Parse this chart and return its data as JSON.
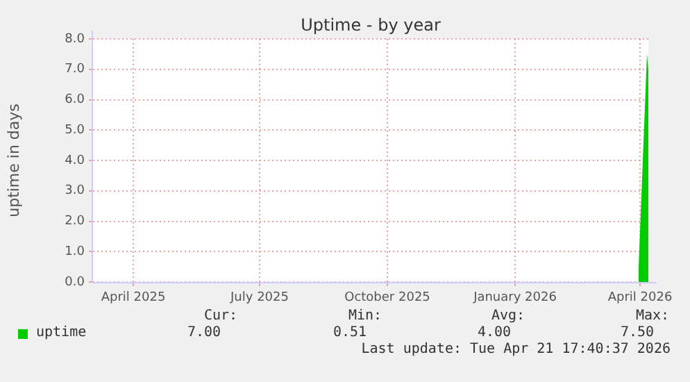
{
  "chart_data": {
    "type": "area",
    "title": "Uptime - by year",
    "ylabel": "uptime in days",
    "x": [
      "2026-04-14",
      "2026-04-17",
      "2026-04-20",
      "2026-04-21"
    ],
    "series": [
      {
        "name": "uptime",
        "color": "#00cc00",
        "values": [
          0.51,
          4.0,
          7.5,
          7.0
        ]
      }
    ],
    "xlim": [
      "2025-03-17",
      "2026-04-21"
    ],
    "xticks": [
      {
        "value": "2025-04-15",
        "label": "April 2025"
      },
      {
        "value": "2025-07-15",
        "label": "July 2025"
      },
      {
        "value": "2025-10-15",
        "label": "October 2025"
      },
      {
        "value": "2026-01-15",
        "label": "January 2026"
      },
      {
        "value": "2026-04-15",
        "label": "April 2026"
      }
    ],
    "ylim": [
      0,
      8
    ],
    "yticks": [
      {
        "value": 0,
        "label": "0.0"
      },
      {
        "value": 1,
        "label": "1.0"
      },
      {
        "value": 2,
        "label": "2.0"
      },
      {
        "value": 3,
        "label": "3.0"
      },
      {
        "value": 4,
        "label": "4.0"
      },
      {
        "value": 5,
        "label": "5.0"
      },
      {
        "value": 6,
        "label": "6.0"
      },
      {
        "value": 7,
        "label": "7.0"
      },
      {
        "value": 8,
        "label": "8.0"
      }
    ],
    "grid": true,
    "legend": "bottom left",
    "annotations": [
      "Cur:",
      "Min:",
      "Avg:",
      "Max:",
      "7.00",
      "0.51",
      "4.00",
      "7.50",
      "Last update: Tue Apr 21 17:40:37 2026"
    ]
  }
}
